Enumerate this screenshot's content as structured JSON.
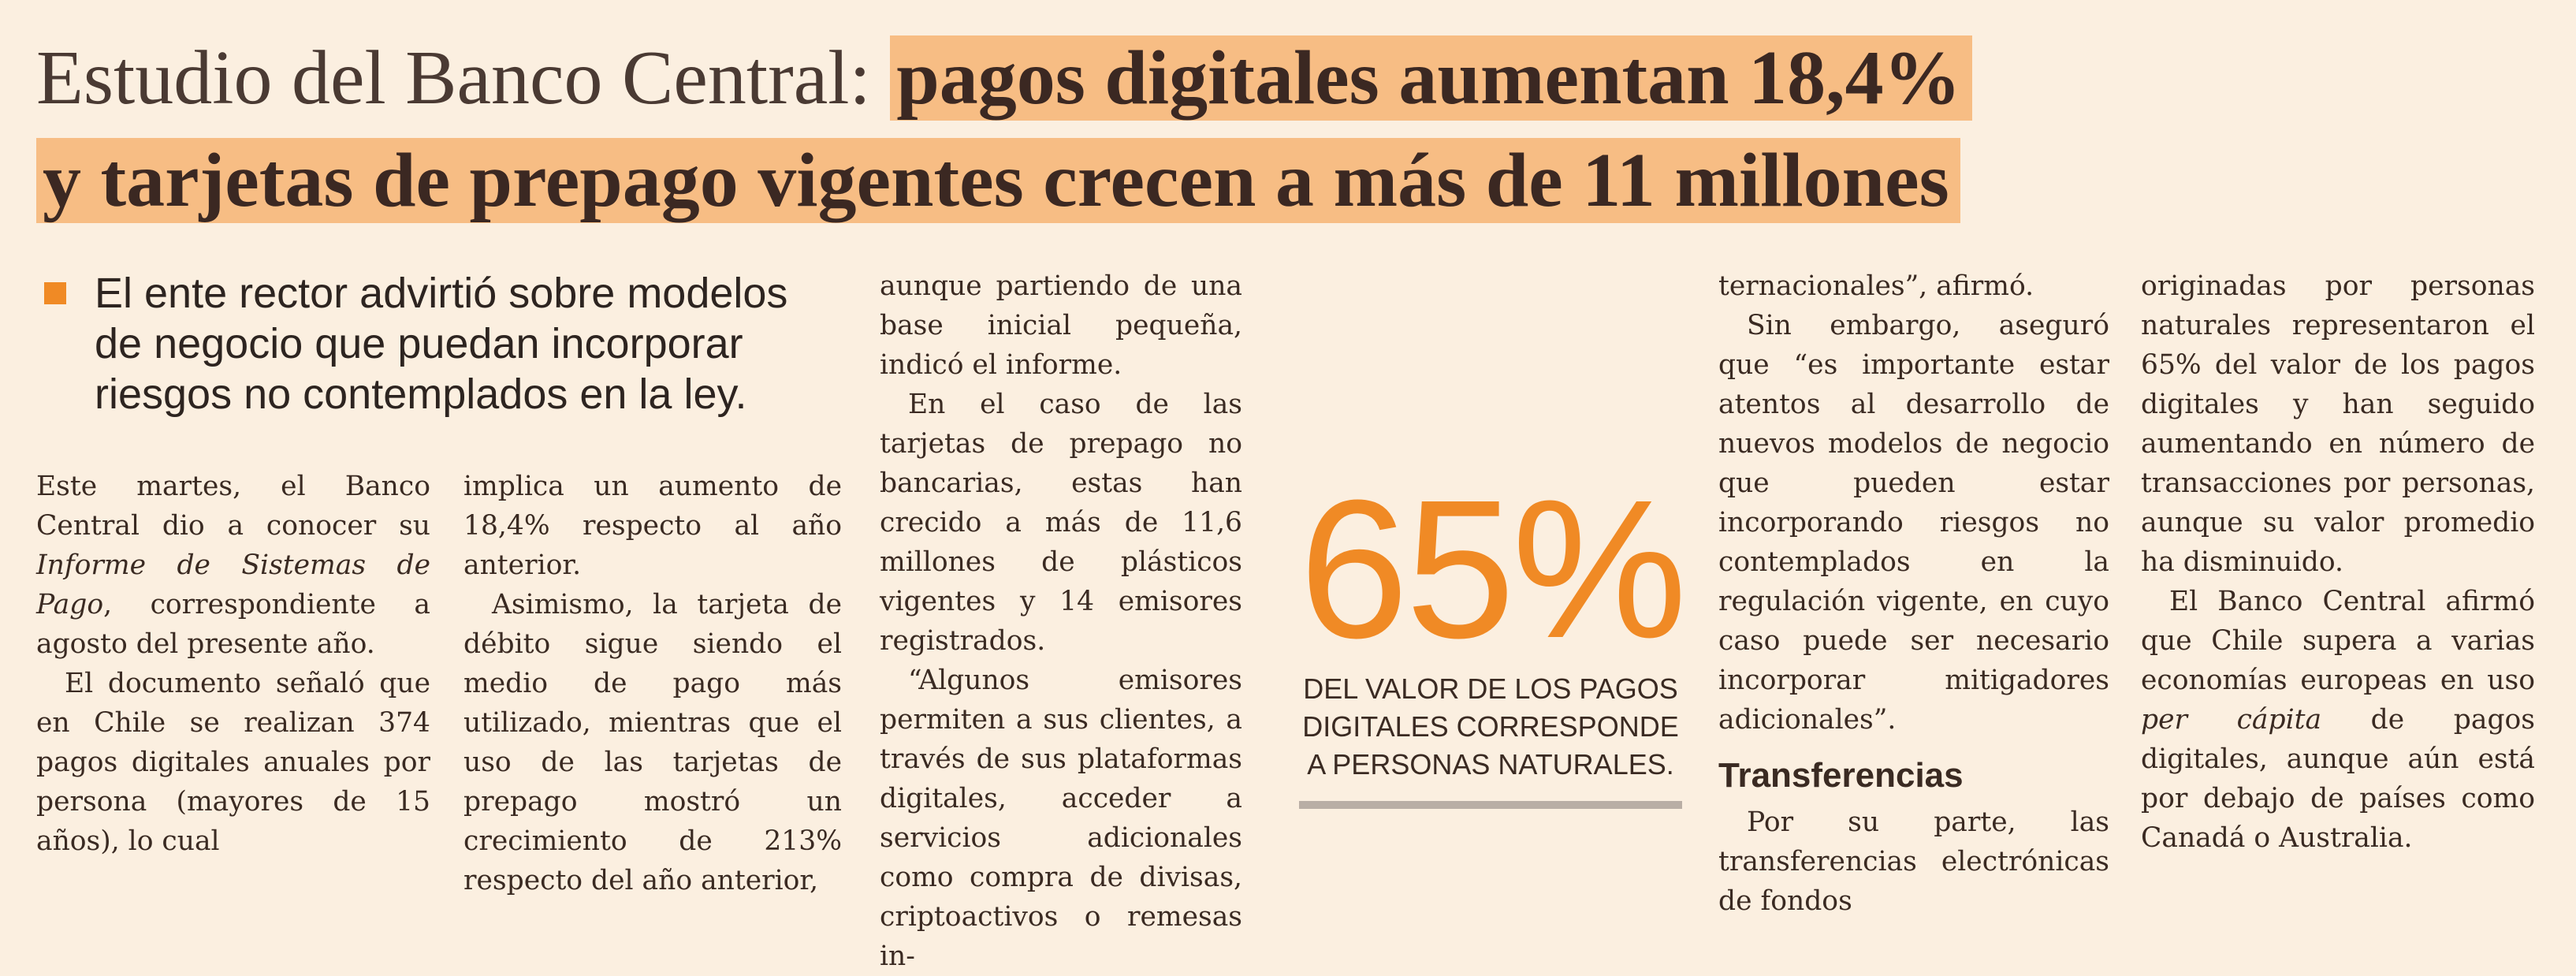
{
  "headline": {
    "line1_light": "Estudio del Banco Central: ",
    "line1_bold": "pagos digitales aumentan 18,4%",
    "line2_bold": "y tarjetas de prepago vigentes crecen a más de 11 millones"
  },
  "lead": "El ente rector advirtió sobre modelos de negocio que puedan incorporar riesgos no contemplados en la ley.",
  "columns": {
    "c1": [
      [
        "Este martes, el Banco Central dio a conocer su ",
        "Informe de Sistemas de Pago",
        ", correspondiente a agosto del presente año."
      ],
      "El documento señaló que en Chile se realizan 374 pagos digitales anuales por persona (mayores de 15 años), lo cual"
    ],
    "c2": [
      "implica un aumento de 18,4% respecto al año anterior.",
      "Asimismo, la tarjeta de débito sigue siendo el medio de pago más utilizado, mientras que el uso de las tarjetas de prepago mostró un crecimiento de 213% respecto del año anterior,"
    ],
    "c3": [
      "aunque partiendo de una base inicial pequeña, indicó el informe.",
      "En el caso de las tarjetas de prepago no bancarias, estas han crecido a más de 11,6 millones de plásticos vigentes y 14 emisores registrados.",
      "“Algunos emisores permiten a sus clientes, a través de sus plataformas digitales, acceder a servicios adicionales como compra de divisas, criptoactivos o remesas in-"
    ],
    "c4": [
      "ternacionales”, afirmó.",
      "Sin embargo, aseguró que “es importante estar atentos al desarrollo de nuevos modelos de negocio que pueden estar incorporando riesgos no contemplados en la regulación vigente, en cuyo caso puede ser necesario incorporar mitigadores adicionales”."
    ],
    "c4_subhead": "Transferencias",
    "c4_after": "Por su parte, las transferencias electrónicas de fondos",
    "c5": [
      "originadas por personas naturales representaron el 65% del valor de los pagos digitales y han seguido aumentando en número de transacciones por personas, aunque su valor promedio ha disminuido.",
      [
        "El Banco Central afirmó que Chile supera a varias economías europeas en uso ",
        "per cápita",
        " de pagos digitales, aunque aún está por debajo de países como Canadá o Australia."
      ]
    ]
  },
  "stat": {
    "number": "65%",
    "text": "DEL VALOR DE LOS PAGOS DIGITALES CORRESPONDE A PERSONAS NATURALES."
  },
  "colors": {
    "background": "#fbefe0",
    "highlight": "#f7bd84",
    "accent": "#f08a25",
    "text": "#3a2a22"
  }
}
